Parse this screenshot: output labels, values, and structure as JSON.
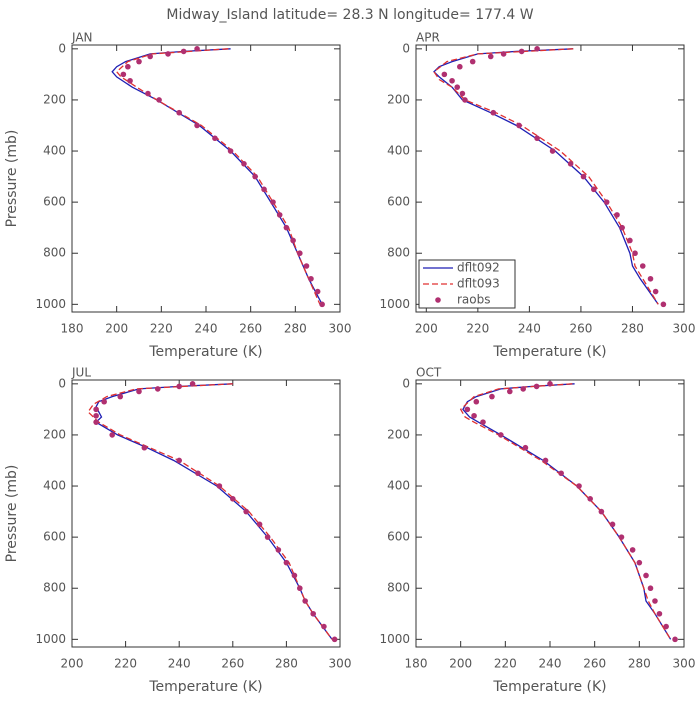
{
  "title": "Midway_Island  latitude= 28.3 N longitude= 177.4 W",
  "chart_data": [
    {
      "type": "line",
      "title": "JAN",
      "xlabel": "Temperature (K)",
      "ylabel": "Pressure (mb)",
      "xlim": [
        180,
        300
      ],
      "xticks": [
        180,
        200,
        220,
        240,
        260,
        280,
        300
      ],
      "ylim": [
        1030,
        -15
      ],
      "yticks": [
        0,
        200,
        400,
        600,
        800,
        1000
      ],
      "series": [
        {
          "color": "#1f1fb4",
          "style": "solid",
          "x": [
            251,
            230,
            215,
            204,
            200,
            198,
            200,
            207,
            218,
            237,
            251,
            262,
            269,
            276,
            281,
            286,
            292
          ],
          "y": [
            0,
            10,
            20,
            50,
            70,
            90,
            110,
            150,
            200,
            300,
            400,
            500,
            600,
            700,
            800,
            900,
            1000
          ]
        },
        {
          "color": "#e03030",
          "style": "dashed",
          "x": [
            250,
            216,
            205,
            200,
            202,
            209,
            218,
            238,
            252,
            263,
            270,
            277,
            281,
            286,
            291
          ],
          "y": [
            0,
            20,
            50,
            90,
            110,
            150,
            200,
            300,
            400,
            500,
            600,
            700,
            800,
            900,
            1000
          ]
        },
        {
          "color": "#b03070",
          "style": "dots",
          "x": [
            236,
            230,
            223,
            215,
            210,
            205,
            203,
            206,
            214,
            219,
            228,
            236,
            244,
            251,
            257,
            262,
            266,
            270,
            273,
            276,
            279,
            282,
            285,
            287,
            290,
            292
          ],
          "y": [
            0,
            10,
            20,
            30,
            50,
            70,
            100,
            125,
            175,
            200,
            250,
            300,
            350,
            400,
            450,
            500,
            550,
            600,
            650,
            700,
            750,
            800,
            850,
            900,
            950,
            1000
          ]
        }
      ]
    },
    {
      "type": "line",
      "title": "APR",
      "xlabel": "Temperature (K)",
      "xlim": [
        196,
        300
      ],
      "xticks": [
        200,
        220,
        240,
        260,
        280,
        300
      ],
      "ylim": [
        1030,
        -15
      ],
      "yticks": [
        0,
        200,
        400,
        600,
        800,
        1000
      ],
      "legend": "lower left",
      "series": [
        {
          "name": "dflt092",
          "color": "#1f1fb4",
          "style": "solid",
          "x": [
            257,
            235,
            220,
            210,
            205,
            203,
            205,
            210,
            214,
            225,
            235,
            250,
            261,
            269,
            275,
            279,
            280,
            283,
            290
          ],
          "y": [
            0,
            10,
            20,
            50,
            70,
            90,
            110,
            150,
            200,
            250,
            300,
            400,
            500,
            600,
            700,
            800,
            850,
            900,
            1000
          ]
        },
        {
          "name": "dflt093",
          "color": "#e03030",
          "style": "dashed",
          "x": [
            257,
            220,
            208,
            203,
            205,
            210,
            215,
            227,
            237,
            252,
            263,
            270,
            276,
            280,
            281,
            284,
            290
          ],
          "y": [
            0,
            20,
            50,
            90,
            120,
            150,
            200,
            250,
            300,
            400,
            500,
            600,
            700,
            800,
            850,
            900,
            1000
          ]
        },
        {
          "name": "raobs",
          "color": "#b03070",
          "style": "dots",
          "x": [
            243,
            237,
            230,
            225,
            218,
            213,
            207,
            210,
            212,
            214,
            215,
            226,
            236,
            243,
            249,
            256,
            261,
            265,
            270,
            274,
            276,
            279,
            281,
            284,
            287,
            289,
            292
          ],
          "y": [
            0,
            10,
            20,
            30,
            50,
            70,
            100,
            125,
            150,
            175,
            200,
            250,
            300,
            350,
            400,
            450,
            500,
            550,
            600,
            650,
            700,
            750,
            800,
            850,
            900,
            950,
            1000
          ]
        }
      ]
    },
    {
      "type": "line",
      "title": "JUL",
      "xlabel": "Temperature (K)",
      "ylabel": "Pressure (mb)",
      "xlim": [
        200,
        300
      ],
      "xticks": [
        200,
        220,
        240,
        260,
        280,
        300
      ],
      "ylim": [
        1030,
        -15
      ],
      "yticks": [
        0,
        200,
        400,
        600,
        800,
        1000
      ],
      "series": [
        {
          "color": "#1f1fb4",
          "style": "solid",
          "x": [
            260,
            240,
            225,
            215,
            210,
            209,
            210,
            211,
            209,
            217,
            228,
            238,
            254,
            265,
            273,
            280,
            285,
            287,
            290,
            297
          ],
          "y": [
            0,
            10,
            20,
            50,
            70,
            90,
            110,
            130,
            150,
            200,
            250,
            300,
            400,
            500,
            600,
            700,
            800,
            850,
            900,
            1000
          ]
        },
        {
          "color": "#e03030",
          "style": "dashed",
          "x": [
            260,
            224,
            213,
            208,
            206,
            210,
            218,
            229,
            240,
            255,
            266,
            274,
            281,
            285,
            287,
            290,
            297
          ],
          "y": [
            0,
            20,
            50,
            80,
            110,
            150,
            200,
            250,
            300,
            400,
            500,
            600,
            700,
            800,
            850,
            900,
            1000
          ]
        },
        {
          "color": "#b03070",
          "style": "dots",
          "x": [
            245,
            240,
            232,
            225,
            218,
            212,
            209,
            209,
            209,
            215,
            227,
            240,
            247,
            255,
            260,
            265,
            270,
            273,
            277,
            280,
            283,
            285,
            287,
            290,
            294,
            298
          ],
          "y": [
            0,
            10,
            20,
            30,
            50,
            70,
            100,
            125,
            150,
            200,
            250,
            300,
            350,
            400,
            450,
            500,
            550,
            600,
            650,
            700,
            750,
            800,
            850,
            900,
            950,
            1000
          ]
        }
      ]
    },
    {
      "type": "line",
      "title": "OCT",
      "xlabel": "Temperature (K)",
      "xlim": [
        180,
        300
      ],
      "xticks": [
        180,
        200,
        220,
        240,
        260,
        280,
        300
      ],
      "ylim": [
        1030,
        -15
      ],
      "yticks": [
        0,
        200,
        400,
        600,
        800,
        1000
      ],
      "series": [
        {
          "color": "#1f1fb4",
          "style": "solid",
          "x": [
            251,
            232,
            218,
            207,
            203,
            201,
            204,
            208,
            218,
            237,
            252,
            263,
            271,
            278,
            282,
            283,
            287,
            294
          ],
          "y": [
            0,
            10,
            20,
            50,
            70,
            100,
            130,
            150,
            200,
            300,
            400,
            500,
            600,
            700,
            800,
            850,
            900,
            1000
          ]
        },
        {
          "color": "#e03030",
          "style": "dashed",
          "x": [
            250,
            217,
            206,
            200,
            202,
            206,
            217,
            236,
            252,
            263,
            271,
            278,
            282,
            284,
            287,
            294
          ],
          "y": [
            0,
            20,
            50,
            100,
            130,
            150,
            200,
            300,
            400,
            500,
            600,
            700,
            800,
            850,
            900,
            1000
          ]
        },
        {
          "color": "#b03070",
          "style": "dots",
          "x": [
            240,
            234,
            228,
            222,
            214,
            207,
            203,
            206,
            210,
            218,
            229,
            238,
            245,
            253,
            258,
            263,
            268,
            272,
            277,
            280,
            283,
            285,
            287,
            289,
            292,
            296
          ],
          "y": [
            0,
            10,
            20,
            30,
            50,
            70,
            100,
            125,
            150,
            200,
            250,
            300,
            350,
            400,
            450,
            500,
            550,
            600,
            650,
            700,
            750,
            800,
            850,
            900,
            950,
            1000
          ]
        }
      ]
    }
  ]
}
